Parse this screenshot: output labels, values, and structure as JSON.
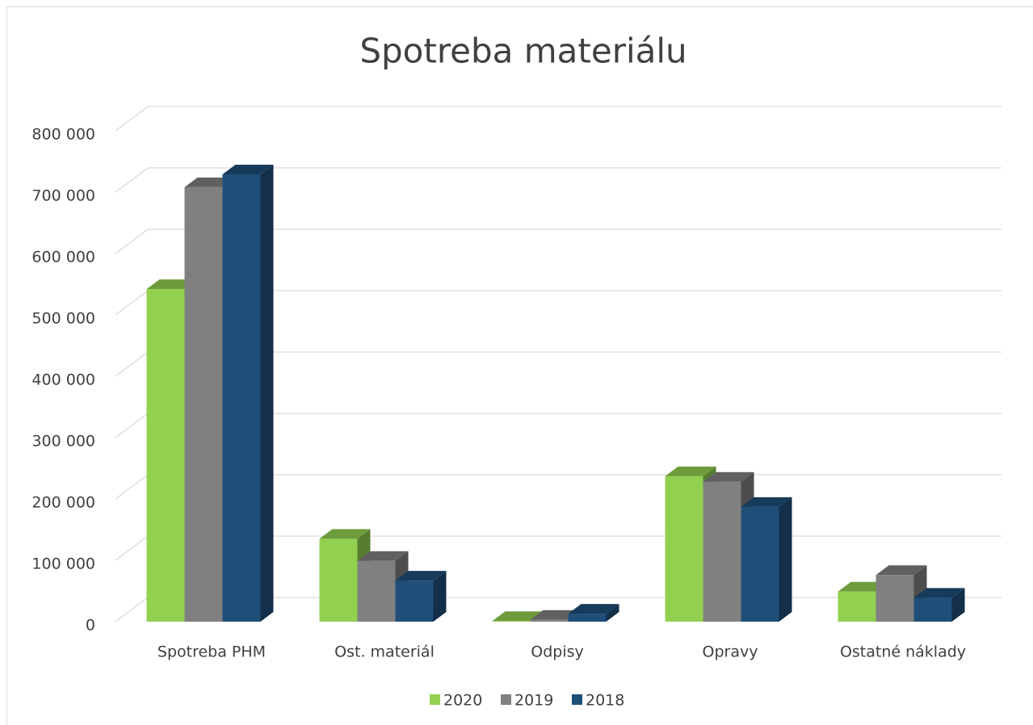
{
  "chart_data": {
    "type": "bar3d",
    "title": "Spotreba materiálu",
    "categories": [
      "Spotreba PHM",
      "Ost. materiál",
      "Odpisy",
      "Opravy",
      "Ostatné náklady"
    ],
    "series": [
      {
        "name": "2020",
        "color": "#92d050",
        "values": [
          542000,
          135000,
          1000,
          237000,
          49000
        ]
      },
      {
        "name": "2019",
        "color": "#808080",
        "values": [
          708000,
          99000,
          3000,
          228000,
          76000
        ]
      },
      {
        "name": "2018",
        "color": "#1f4e79",
        "values": [
          729000,
          67000,
          13000,
          187000,
          39000
        ]
      }
    ],
    "ylim": [
      0,
      800000
    ],
    "yticks": [
      0,
      {
        "value": 100000,
        "label": "100 000"
      },
      {
        "value": 200000,
        "label": "200 000"
      },
      {
        "value": 300000,
        "label": "300 000"
      },
      {
        "value": 400000,
        "label": "400 000"
      },
      {
        "value": 500000,
        "label": "500 000"
      },
      {
        "value": 600000,
        "label": "600 000"
      },
      {
        "value": 700000,
        "label": "700 000"
      },
      {
        "value": 800000,
        "label": "800 000"
      }
    ],
    "grid": true,
    "legend": "bottom"
  }
}
